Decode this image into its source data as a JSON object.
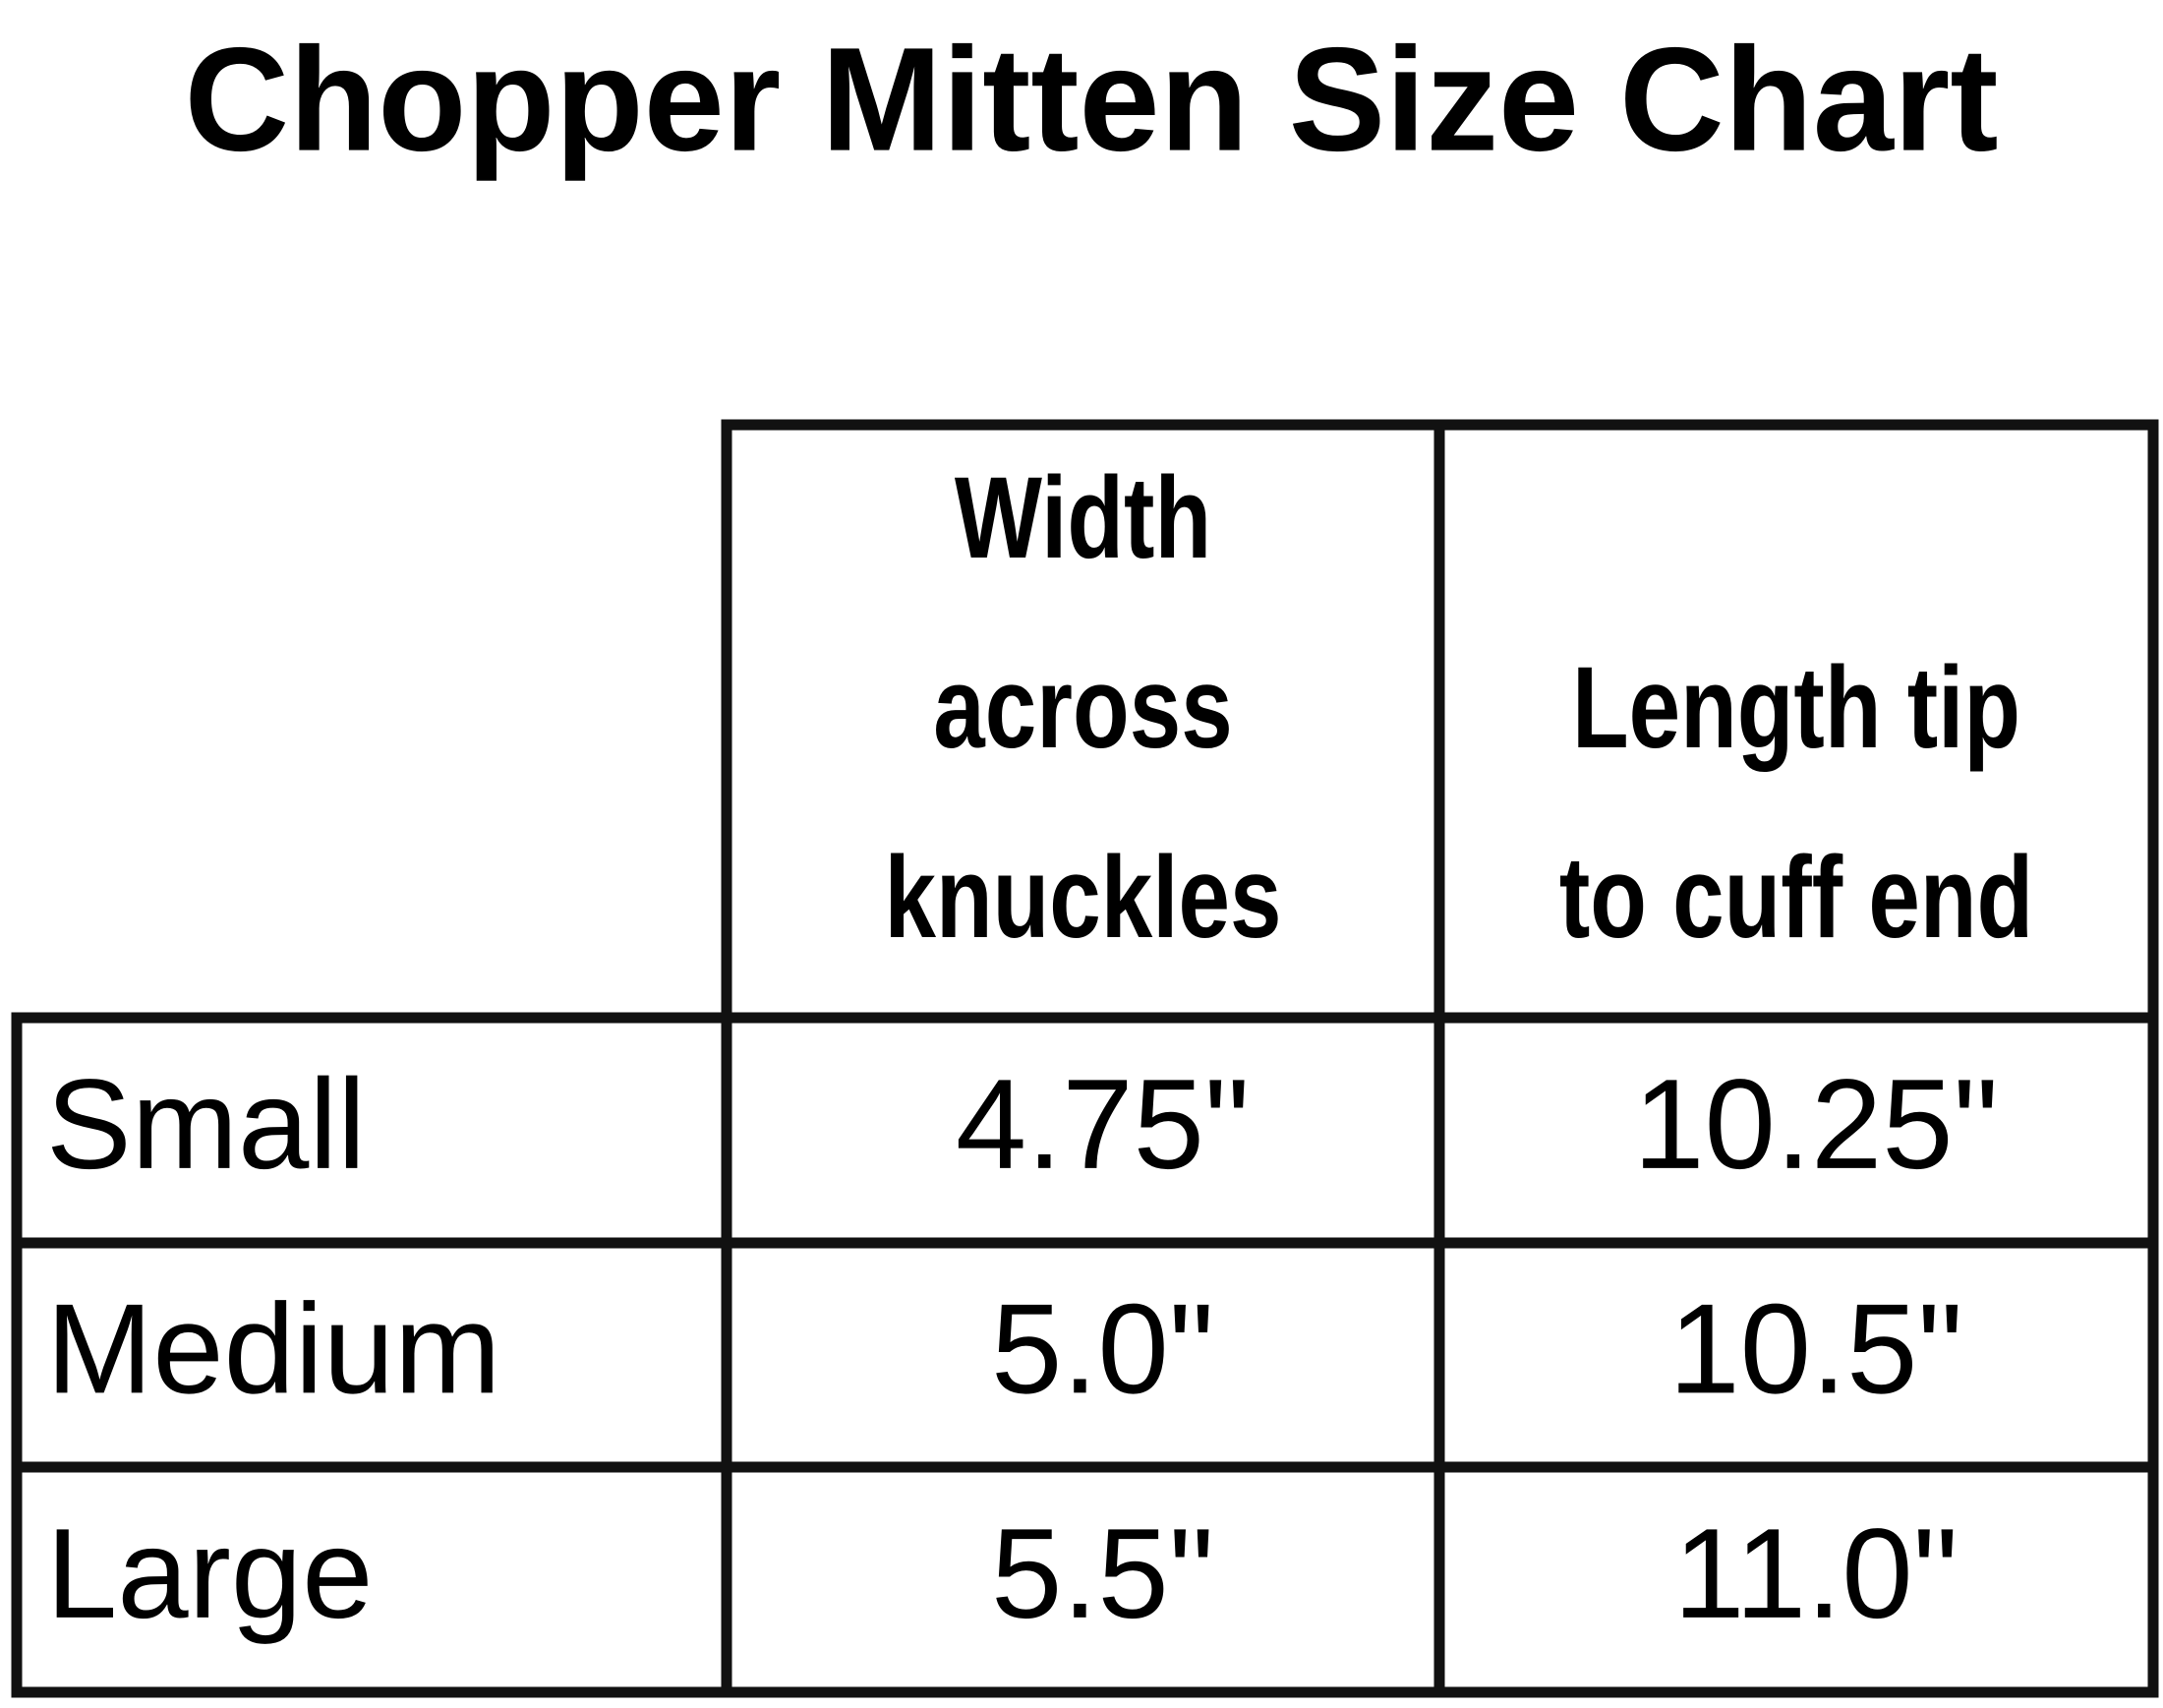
{
  "header": {
    "title": "Chopper Mitten Size Chart"
  },
  "table": {
    "columns": [
      null,
      [
        "Width",
        "across",
        "knuckles"
      ],
      [
        "Length tip",
        "to cuff end"
      ]
    ],
    "rows": [
      [
        "Small",
        "4.75\"",
        "10.25\""
      ],
      [
        "Medium",
        "5.0\"",
        "10.5\""
      ],
      [
        "Large",
        "5.5\"",
        "11.0\""
      ]
    ]
  }
}
